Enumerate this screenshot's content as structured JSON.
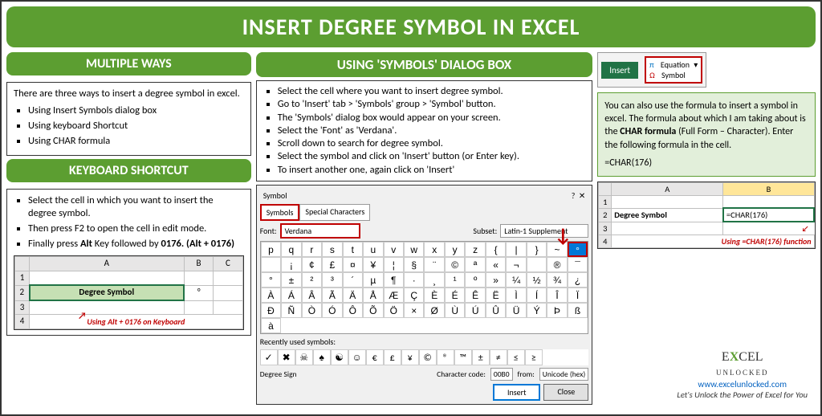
{
  "title": "INSERT DEGREE SYMBOL IN EXCEL",
  "left": {
    "header1": "MULTIPLE WAYS",
    "intro": "There are three ways to insert a degree symbol in excel.",
    "ways": [
      "Using Insert Symbols dialog box",
      "Using keyboard Shortcut",
      "Using CHAR formula"
    ],
    "header2": "KEYBOARD SHORTCUT",
    "steps": [
      "Select the cell in which you want to insert the degree symbol.",
      "Then press F2 to open the cell in edit mode.",
      "Finally press Alt Key followed by 0176. (Alt + 0176)"
    ],
    "snippet": {
      "cols": [
        "A",
        "B",
        "C"
      ],
      "rows": [
        "1",
        "2",
        "3",
        "4"
      ],
      "label": "Degree Symbol",
      "value": "°",
      "caption": "Using Alt + 0176 on Keyboard"
    }
  },
  "mid": {
    "header": "USING 'SYMBOLS' DIALOG BOX",
    "steps": [
      "Select the cell where you want to insert degree symbol.",
      "Go to 'Insert' tab > 'Symbols' group > 'Symbol' button.",
      "The 'Symbols' dialog box would appear on your screen.",
      "Select the 'Font' as 'Verdana'.",
      "Scroll down to search for degree symbol.",
      "Select the symbol and click on 'Insert' button (or Enter key).",
      "To insert another one, again click on 'Insert'"
    ],
    "dialog": {
      "title": "Symbol",
      "tab1": "Symbols",
      "tab2": "Special Characters",
      "font_label": "Font:",
      "font_value": "Verdana",
      "subset_label": "Subset:",
      "subset_value": "Latin-1 Supplement",
      "grid": [
        "p",
        "q",
        "r",
        "s",
        "t",
        "u",
        "v",
        "w",
        "x",
        "y",
        "z",
        "{",
        "|",
        "}",
        "~",
        "",
        "",
        "¡",
        "¢",
        "£",
        "¤",
        "¥",
        "¦",
        "§",
        "¨",
        "©",
        "ª",
        "«",
        "¬",
        "",
        "®",
        "¯",
        "°",
        "±",
        "²",
        "³",
        "´",
        "µ",
        "¶",
        "·",
        "¸",
        "¹",
        "º",
        "»",
        "¼",
        "½",
        "¾",
        "¿",
        "À",
        "Á",
        "Â",
        "Ã",
        "Ä",
        "Å",
        "Æ",
        "Ç",
        "È",
        "É",
        "Ê",
        "Ë",
        "Ì",
        "Í",
        "Î",
        "Ï",
        "Ð",
        "Ñ",
        "Ò",
        "Ó",
        "Ô",
        "Õ",
        "Ö",
        "×",
        "Ø",
        "Ù",
        "Ú",
        "Û",
        "Ü",
        "Ý",
        "Þ",
        "ß",
        "à"
      ],
      "hl_index": 15,
      "recent_label": "Recently used symbols:",
      "recent": [
        "✓",
        "✖",
        "☠",
        "♠",
        "☯",
        "☺",
        "€",
        "£",
        "¥",
        "©",
        "®",
        "™",
        "±",
        "≠",
        "≤",
        "≥"
      ],
      "degree_sign": "Degree Sign",
      "char_code_label": "Character code:",
      "char_code": "00B0",
      "from_label": "from:",
      "from_value": "Unicode (hex)",
      "btn_insert": "Insert",
      "btn_close": "Close"
    }
  },
  "right": {
    "ribbon": {
      "insert": "Insert",
      "equation": "Equation",
      "symbol": "Symbol",
      "pi": "π",
      "omega": "Ω"
    },
    "char_text_1": "You can also use the formula to insert a symbol in excel. The formula about which I am taking about is the ",
    "char_bold": "CHAR formula",
    "char_text_2": " (Full Form – Character). Enter the following formula in the cell.",
    "formula": "=CHAR(176)",
    "snippet": {
      "cols": [
        "A",
        "B"
      ],
      "label": "Degree Symbol",
      "formula_cell": "=CHAR(176)",
      "caption": "Using =CHAR(176) function"
    }
  },
  "footer": {
    "brand1": "EXCEL",
    "brand2": "UNLOCKED",
    "url": "www.excelunlocked.com",
    "tag": "Let's Unlock the Power of Excel for You"
  },
  "colors": {
    "green": "#5c9e31",
    "red": "#c00000",
    "excel_green": "#217346",
    "highlight_blue": "#0078d7"
  }
}
